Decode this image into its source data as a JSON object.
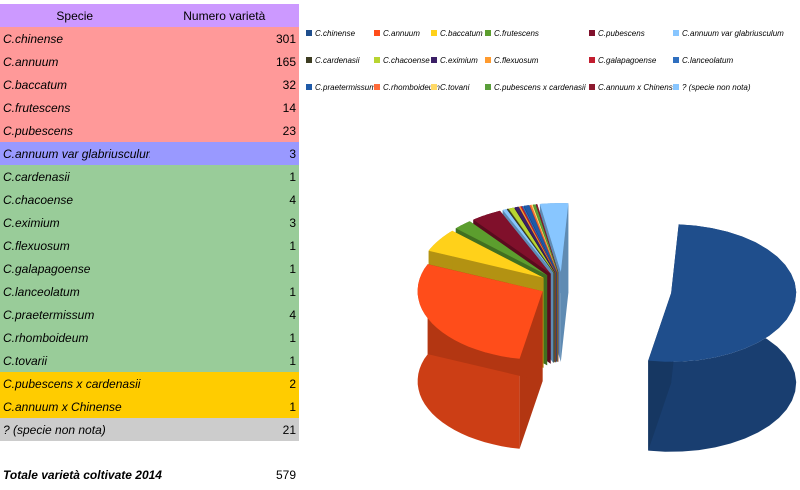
{
  "table": {
    "headers": [
      "Specie",
      "Numero varietà"
    ],
    "header_color": "#cc99ff",
    "rows": [
      {
        "name": "C.chinense",
        "value": "301",
        "color": "#ff9999"
      },
      {
        "name": "C.annuum",
        "value": "165",
        "color": "#ff9999"
      },
      {
        "name": "C.baccatum",
        "value": "32",
        "color": "#ff9999"
      },
      {
        "name": "C.frutescens",
        "value": "14",
        "color": "#ff9999"
      },
      {
        "name": "C.pubescens",
        "value": "23",
        "color": "#ff9999"
      },
      {
        "name": "C.annuum var glabriusculum",
        "value": "3",
        "color": "#9999ff"
      },
      {
        "name": "C.cardenasii",
        "value": "1",
        "color": "#99cc99"
      },
      {
        "name": "C.chacoense",
        "value": "4",
        "color": "#99cc99"
      },
      {
        "name": "C.eximium",
        "value": "3",
        "color": "#99cc99"
      },
      {
        "name": "C.flexuosum",
        "value": "1",
        "color": "#99cc99"
      },
      {
        "name": "C.galapagoense",
        "value": "1",
        "color": "#99cc99"
      },
      {
        "name": "C.lanceolatum",
        "value": "1",
        "color": "#99cc99"
      },
      {
        "name": "C.praetermissum",
        "value": "4",
        "color": "#99cc99"
      },
      {
        "name": "C.rhomboideum",
        "value": "1",
        "color": "#99cc99"
      },
      {
        "name": "C.tovarii",
        "value": "1",
        "color": "#99cc99"
      },
      {
        "name": "C.pubescens x cardenasii",
        "value": "2",
        "color": "#ffcc00"
      },
      {
        "name": "C.annuum x Chinense",
        "value": "1",
        "color": "#ffcc00"
      },
      {
        "name": "? (specie non nota)",
        "value": "21",
        "color": "#cccccc"
      }
    ]
  },
  "total": {
    "label": "Totale varietà coltivate 2014",
    "value": "579"
  },
  "chart_data": {
    "type": "pie",
    "title": "",
    "legend_position": "top",
    "categories": [
      "C.chinense",
      "C.annuum",
      "C.baccatum",
      "C.frutescens",
      "C.pubescens",
      "C.annuum var glabriusculum",
      "C.cardenasii",
      "C.chacoense",
      "C.eximium",
      "C.flexuosum",
      "C.galapagoense",
      "C.lanceolatum",
      "C.praetermissum",
      "C.rhomboideum",
      "C.tovani",
      "C.pubescens x cardenasii",
      "C.annuum x Chinense",
      "? (specie non nota)"
    ],
    "values": [
      301,
      165,
      32,
      14,
      23,
      3,
      1,
      4,
      3,
      1,
      1,
      1,
      4,
      1,
      1,
      2,
      1,
      21
    ],
    "colors": [
      "#1f4e8c",
      "#ff4d1a",
      "#ffd11a",
      "#5c9e2e",
      "#80102b",
      "#88c6ff",
      "#3d3d22",
      "#b8d431",
      "#3b1f66",
      "#ff9b2e",
      "#c21d2f",
      "#2f6fbf",
      "#1f5aa8",
      "#ff6b3a",
      "#ffd966",
      "#5a9e3a",
      "#8c1a2e",
      "#88c6ff"
    ]
  }
}
